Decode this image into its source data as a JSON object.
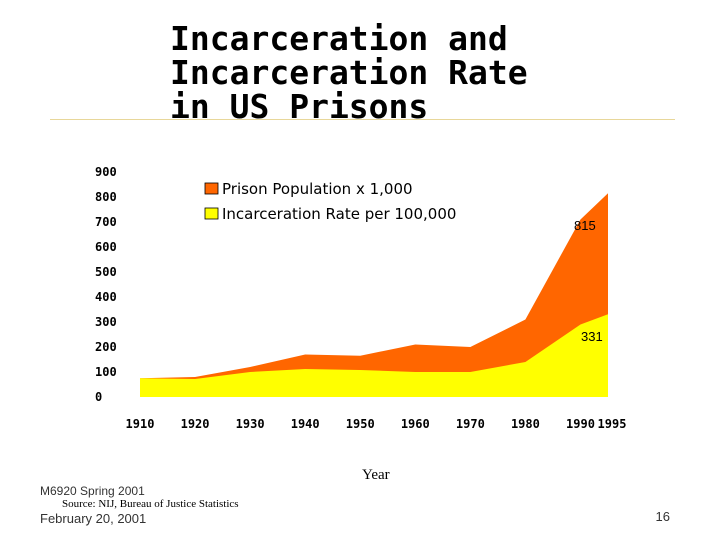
{
  "slide": {
    "title_lines": [
      "Incarceration and",
      "Incarceration Rate",
      "in US Prisons"
    ],
    "footer_course": "M6920 Spring 2001",
    "footer_date": "February 20, 2001",
    "source": "Source:  NIJ, Bureau of Justice Statistics",
    "page_number": "16"
  },
  "chart_data": {
    "type": "area",
    "title": "",
    "xlabel": "Year",
    "ylabel": "",
    "categories": [
      "1910",
      "1920",
      "1930",
      "1940",
      "1950",
      "1960",
      "1970",
      "1980",
      "1990",
      "1995"
    ],
    "ylim": [
      0,
      900
    ],
    "yticks": [
      "0",
      "100",
      "200",
      "300",
      "400",
      "500",
      "600",
      "700",
      "800",
      "900"
    ],
    "series": [
      {
        "name": "Prison Population x 1,000",
        "color": "#ff6600",
        "values": [
          75,
          80,
          120,
          170,
          165,
          210,
          200,
          310,
          710,
          815
        ]
      },
      {
        "name": "Incarceration Rate per 100,000",
        "color": "#ffff00",
        "values": [
          75,
          72,
          100,
          112,
          108,
          100,
          100,
          140,
          290,
          331
        ]
      }
    ],
    "data_labels": [
      "815",
      "331"
    ],
    "legend": "top",
    "grid": false
  }
}
